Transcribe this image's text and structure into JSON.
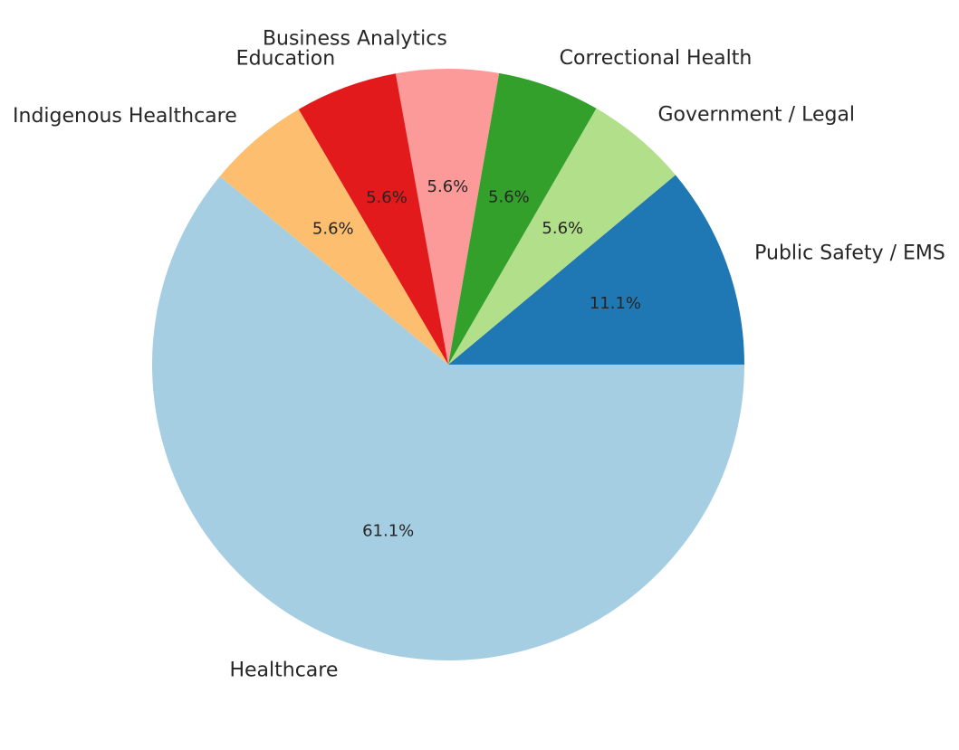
{
  "chart_data": {
    "type": "pie",
    "title": "",
    "start_angle_deg": 0,
    "direction": "counterclockwise",
    "slices": [
      {
        "label": "Public Safety / EMS",
        "value": 11.1,
        "pct_label": "11.1%",
        "color": "#1f78b4"
      },
      {
        "label": "Government / Legal",
        "value": 5.6,
        "pct_label": "5.6%",
        "color": "#b2df8a"
      },
      {
        "label": "Correctional Health",
        "value": 5.6,
        "pct_label": "5.6%",
        "color": "#33a02c"
      },
      {
        "label": "Business Analytics",
        "value": 5.6,
        "pct_label": "5.6%",
        "color": "#fb9a99"
      },
      {
        "label": "Education",
        "value": 5.6,
        "pct_label": "5.6%",
        "color": "#e31a1c"
      },
      {
        "label": "Indigenous Healthcare",
        "value": 5.6,
        "pct_label": "5.6%",
        "color": "#fdbf6f"
      },
      {
        "label": "Healthcare",
        "value": 61.1,
        "pct_label": "61.1%",
        "color": "#a6cee3"
      }
    ]
  }
}
